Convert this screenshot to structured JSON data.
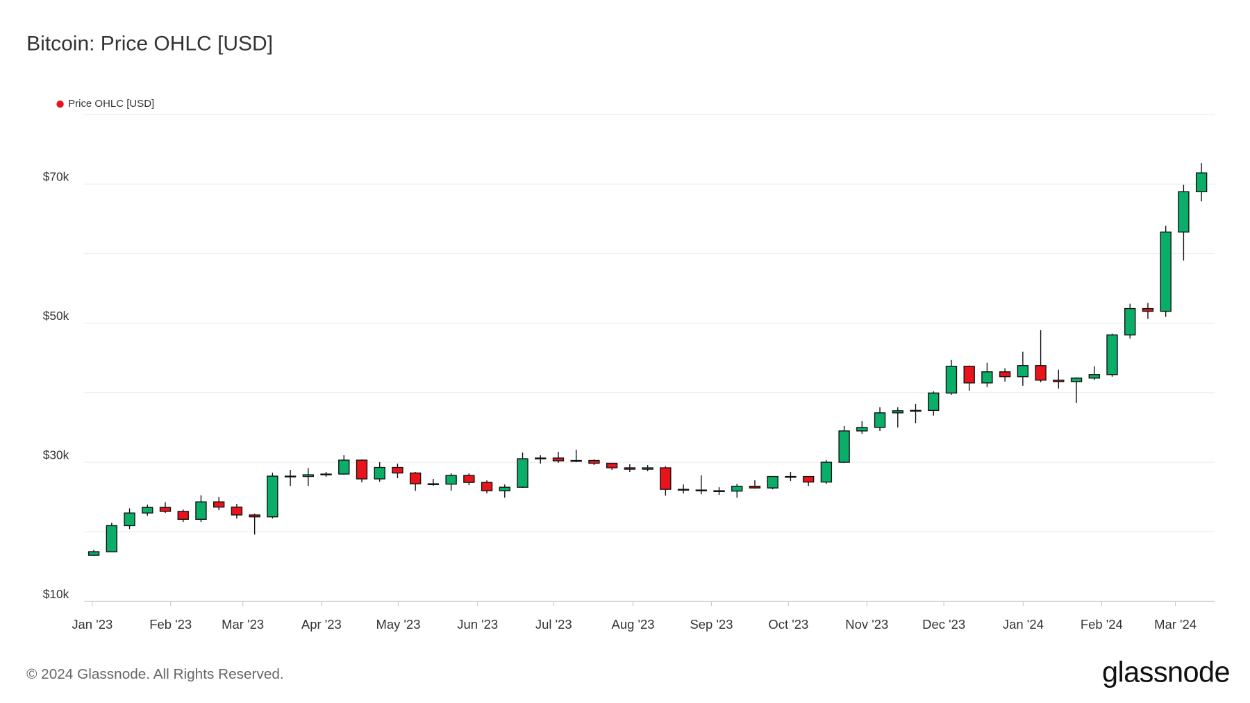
{
  "chart_data": {
    "type": "candlestick",
    "title": "Bitcoin: Price OHLC [USD]",
    "series": [
      {
        "name": "Price OHLC [USD]",
        "color": "#e8131b",
        "up_color": "#0aae68",
        "down_color": "#e8131b",
        "open": [
          16625,
          17130,
          20880,
          22700,
          23500,
          22930,
          21790,
          24300,
          23550,
          22420,
          22150,
          28000,
          27950,
          28200,
          28300,
          30300,
          27600,
          29250,
          28450,
          26900,
          26850,
          28100,
          27100,
          25900,
          26400,
          30500,
          30600,
          30200,
          30250,
          29850,
          29200,
          29000,
          29200,
          26100,
          26000,
          25900,
          25850,
          26550,
          26300,
          27950,
          27950,
          27150,
          30000,
          34500,
          35000,
          37100,
          37400,
          37450,
          39950,
          43800,
          41400,
          43000,
          42300,
          43900,
          41800,
          41600,
          42100,
          42600,
          48300,
          52100,
          51700,
          63100,
          68900
        ],
        "high": [
          17400,
          21300,
          23370,
          23900,
          24250,
          23200,
          25250,
          25000,
          24000,
          22600,
          28500,
          28900,
          29150,
          28600,
          31000,
          30400,
          30000,
          29800,
          28600,
          27600,
          28400,
          28400,
          27400,
          26800,
          31400,
          31000,
          31500,
          31800,
          30400,
          29900,
          29700,
          29600,
          29400,
          26800,
          28100,
          26400,
          26900,
          27400,
          28000,
          28600,
          28000,
          30300,
          35200,
          35900,
          37900,
          37900,
          38400,
          40200,
          44700,
          43900,
          44300,
          43500,
          45900,
          49000,
          43300,
          42200,
          43800,
          48500,
          52800,
          52900,
          64000,
          69900,
          73000
        ],
        "low": [
          16550,
          17100,
          20400,
          22300,
          22700,
          21400,
          21400,
          23100,
          21900,
          19600,
          21900,
          26600,
          26600,
          27900,
          28200,
          27100,
          27200,
          27700,
          25900,
          26600,
          25900,
          26700,
          25500,
          24900,
          26300,
          29800,
          29900,
          30000,
          29600,
          28900,
          28600,
          28700,
          25200,
          25500,
          25400,
          25300,
          24900,
          26200,
          26100,
          27300,
          26600,
          26900,
          29900,
          34100,
          34500,
          35000,
          35600,
          36700,
          39700,
          40300,
          40800,
          41600,
          41000,
          41500,
          40600,
          38500,
          41800,
          42300,
          47800,
          50600,
          50900,
          59000,
          67500
        ],
        "close": [
          17130,
          20880,
          22700,
          23500,
          22930,
          21790,
          24300,
          23550,
          22420,
          22150,
          28000,
          27950,
          28200,
          28300,
          30300,
          27600,
          29250,
          28450,
          26900,
          26850,
          28100,
          27100,
          25900,
          26400,
          30500,
          30600,
          30200,
          30250,
          29850,
          29200,
          29000,
          29200,
          26100,
          26000,
          25900,
          25850,
          26550,
          26300,
          27950,
          27950,
          27150,
          30000,
          34500,
          35000,
          37100,
          37400,
          37450,
          39950,
          43800,
          41400,
          43000,
          42300,
          43900,
          41800,
          41600,
          42100,
          42600,
          48300,
          52100,
          51700,
          63100,
          68900,
          71600
        ]
      }
    ],
    "x": [
      0,
      1,
      2,
      3,
      4,
      5,
      6,
      7,
      8,
      9,
      10,
      11,
      12,
      13,
      14,
      15,
      16,
      17,
      18,
      19,
      20,
      21,
      22,
      23,
      24,
      25,
      26,
      27,
      28,
      29,
      30,
      31,
      32,
      33,
      34,
      35,
      36,
      37,
      38,
      39,
      40,
      41,
      42,
      43,
      44,
      45,
      46,
      47,
      48,
      49,
      50,
      51,
      52,
      53,
      54,
      55,
      56,
      57,
      58,
      59,
      60,
      61,
      62
    ],
    "xlim": [
      -0.54,
      62.74
    ],
    "xticks": [
      {
        "value": -0.09,
        "label": "Jan '23"
      },
      {
        "value": 4.3,
        "label": "Feb '23"
      },
      {
        "value": 8.34,
        "label": "Mar '23"
      },
      {
        "value": 12.74,
        "label": "Apr '23"
      },
      {
        "value": 17.04,
        "label": "May '23"
      },
      {
        "value": 21.48,
        "label": "Jun '23"
      },
      {
        "value": 25.74,
        "label": "Jul '23"
      },
      {
        "value": 30.18,
        "label": "Aug '23"
      },
      {
        "value": 34.57,
        "label": "Sep '23"
      },
      {
        "value": 38.88,
        "label": "Oct '23"
      },
      {
        "value": 43.27,
        "label": "Nov '23"
      },
      {
        "value": 47.58,
        "label": "Dec '23"
      },
      {
        "value": 52.02,
        "label": "Jan '24"
      },
      {
        "value": 56.41,
        "label": "Feb '24"
      },
      {
        "value": 60.54,
        "label": "Mar '24"
      }
    ],
    "ylim": [
      10000,
      80000
    ],
    "yticks": [
      {
        "value": 10000,
        "label": "$10k"
      },
      {
        "value": 30000,
        "label": "$30k"
      },
      {
        "value": 50000,
        "label": "$50k"
      },
      {
        "value": 70000,
        "label": "$70k"
      }
    ],
    "ygrid": [
      10000,
      20000,
      30000,
      40000,
      50000,
      60000,
      70000,
      80000
    ],
    "grid": true,
    "legend": "top-left"
  },
  "footer": {
    "copyright": "© 2024 Glassnode. All Rights Reserved.",
    "logo": "glassnode"
  }
}
